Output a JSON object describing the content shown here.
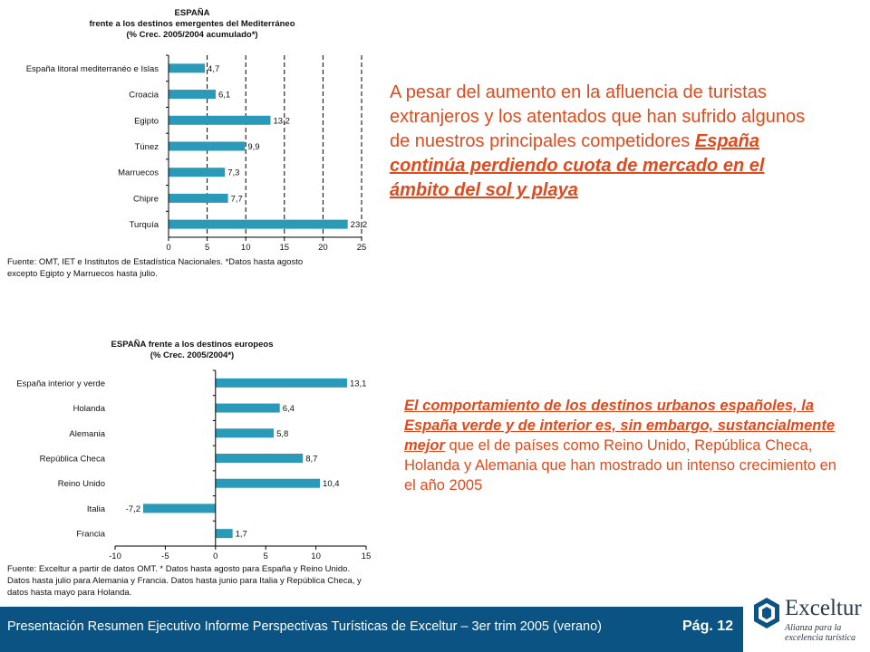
{
  "chart_data": [
    {
      "type": "bar",
      "orientation": "horizontal",
      "title": [
        "ESPAÑA",
        "frente a los destinos emergentes del Mediterráneo",
        "(% Crec. 2005/2004 acumulado*)"
      ],
      "categories": [
        "España litoral mediterranéo e Islas",
        "Croacia",
        "Egipto",
        "Túnez",
        "Marruecos",
        "Chipre",
        "Turquía"
      ],
      "values": [
        4.7,
        6.1,
        13.2,
        9.9,
        7.3,
        7.7,
        23.2
      ],
      "value_labels": [
        "4,7",
        "6,1",
        "13,2",
        "9,9",
        "7,3",
        "7,7",
        "23,2"
      ],
      "xlim": [
        0,
        25
      ],
      "ticks": [
        0,
        5,
        10,
        15,
        20,
        25
      ],
      "grid": "dashed vertical",
      "bar_color": "#2a9ab8",
      "source": "Fuente: OMT, IET e Institutos de Estadística Nacionales. *Datos hasta agosto excepto Egipto y Marruecos hasta julio."
    },
    {
      "type": "bar",
      "orientation": "horizontal",
      "title": [
        "ESPAÑA frente a los destinos europeos",
        "(% Crec. 2005/2004*)"
      ],
      "categories": [
        "España interior y verde",
        "Holanda",
        "Alemania",
        "República Checa",
        "Reino Unido",
        "Italia",
        "Francia"
      ],
      "values": [
        13.1,
        6.4,
        5.8,
        8.7,
        10.4,
        -7.2,
        1.7
      ],
      "value_labels": [
        "13,1",
        "6,4",
        "5,8",
        "8,7",
        "10,4",
        "-7,2",
        "1,7"
      ],
      "xlim": [
        -10,
        15
      ],
      "ticks": [
        -10,
        -5,
        0,
        5,
        10,
        15
      ],
      "grid": "none",
      "bar_color": "#2a9ab8",
      "source": "Fuente: Exceltur a partir de datos OMT. * Datos hasta agosto para España y Reino Unido. Datos hasta julio para Alemania y Francia. Datos hasta junio para Italia y República Checa, y datos hasta mayo para Holanda."
    }
  ],
  "text1": {
    "plain": "A pesar del aumento en la afluencia de turistas extranjeros y los atentados que han sufrido algunos de nuestros principales competidores ",
    "emphasis": "España continúa perdiendo cuota de mercado en el ámbito del sol y playa"
  },
  "text2": {
    "emphasis": "El comportamiento de los destinos urbanos españoles, la España verde y de interior es, sin embargo, sustancialmente mejor",
    "plain": " que el de países como Reino Unido, República Checa, Holanda y Alemania que  han mostrado un intenso crecimiento en el año 2005"
  },
  "footer": {
    "text": "Presentación Resumen Ejecutivo Informe Perspectivas Turísticas de Exceltur – 3er trim 2005 (verano)",
    "page": "Pág. 12"
  },
  "logo": {
    "name": "Exceltur",
    "tagline": "Alianza para la excelencia turística"
  },
  "colors": {
    "accent_text": "#e04a1c",
    "footer_bg": "#0a5382",
    "bar": "#2a9ab8"
  }
}
